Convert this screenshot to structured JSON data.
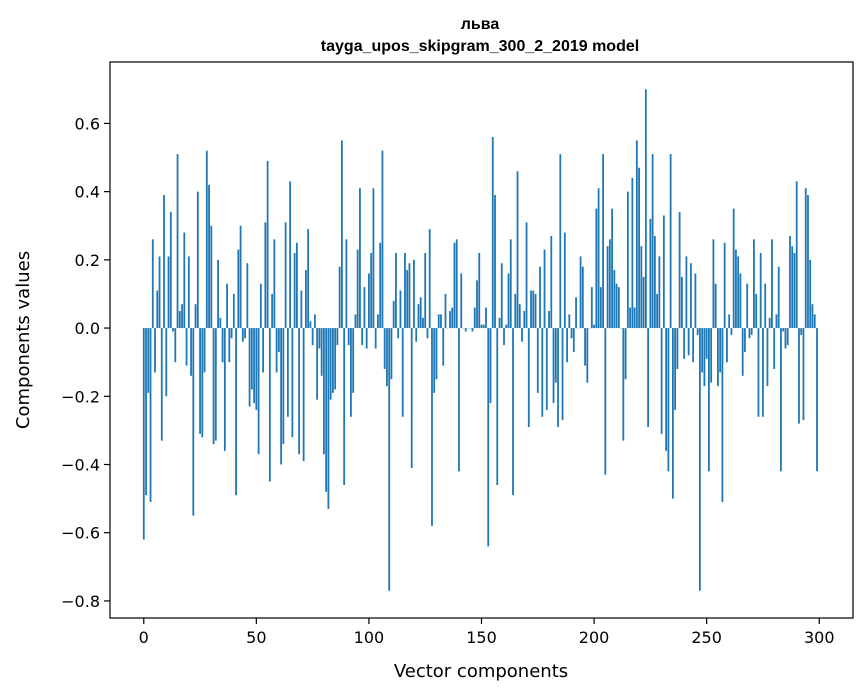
{
  "chart_data": {
    "type": "bar",
    "title": "льва",
    "subtitle": "tayga_upos_skipgram_300_2_2019 model",
    "xlabel": "Vector components",
    "ylabel": "Components values",
    "xlim": [
      -15,
      315
    ],
    "ylim": [
      -0.85,
      0.78
    ],
    "xticks": [
      0,
      50,
      100,
      150,
      200,
      250,
      300
    ],
    "yticks": [
      -0.8,
      -0.6,
      -0.4,
      -0.2,
      0.0,
      0.2,
      0.4,
      0.6
    ],
    "ytick_labels": [
      "−0.8",
      "−0.6",
      "−0.4",
      "−0.2",
      "0.0",
      "0.2",
      "0.4",
      "0.6"
    ],
    "bar_color": "#1f77b4",
    "grid": false,
    "values": [
      -0.62,
      -0.49,
      -0.19,
      -0.51,
      0.26,
      -0.13,
      0.11,
      0.21,
      -0.33,
      0.39,
      -0.2,
      0.21,
      0.34,
      -0.01,
      -0.1,
      0.51,
      0.05,
      0.07,
      0.28,
      -0.11,
      0.21,
      -0.14,
      -0.55,
      0.07,
      0.4,
      -0.31,
      -0.32,
      -0.13,
      0.52,
      0.42,
      0.3,
      -0.34,
      -0.33,
      0.2,
      0.03,
      -0.1,
      -0.36,
      0.13,
      -0.1,
      -0.03,
      0.1,
      -0.49,
      0.23,
      0.3,
      -0.04,
      -0.03,
      0.19,
      -0.23,
      -0.18,
      -0.22,
      -0.24,
      -0.37,
      0.13,
      -0.13,
      0.31,
      0.49,
      -0.45,
      0.1,
      0.26,
      -0.13,
      -0.07,
      -0.4,
      -0.34,
      0.31,
      -0.26,
      0.43,
      -0.32,
      0.22,
      0.25,
      -0.37,
      0.11,
      -0.39,
      0.17,
      0.29,
      0.02,
      -0.05,
      0.04,
      -0.21,
      -0.06,
      -0.14,
      -0.37,
      -0.48,
      -0.53,
      -0.21,
      -0.19,
      -0.18,
      -0.05,
      0.18,
      0.55,
      -0.46,
      0.26,
      -0.05,
      -0.26,
      -0.19,
      0.04,
      0.23,
      0.41,
      -0.05,
      0.12,
      -0.06,
      0.16,
      0.22,
      0.41,
      -0.06,
      0.04,
      0.25,
      0.52,
      -0.12,
      -0.17,
      -0.77,
      -0.15,
      0.08,
      0.22,
      -0.03,
      0.11,
      -0.26,
      0.22,
      0.17,
      0.19,
      -0.41,
      0.2,
      -0.04,
      0.07,
      0.09,
      0.03,
      0.22,
      -0.03,
      0.29,
      -0.58,
      -0.19,
      -0.15,
      0.04,
      0.04,
      -0.11,
      0.1,
      0.0,
      0.05,
      0.06,
      0.25,
      0.26,
      -0.42,
      0.16,
      0.0,
      -0.01,
      0.0,
      0.0,
      -0.01,
      0.06,
      0.14,
      0.22,
      0.01,
      0.01,
      0.06,
      -0.64,
      -0.22,
      0.56,
      0.39,
      -0.46,
      0.03,
      0.19,
      -0.05,
      0.01,
      0.16,
      0.26,
      -0.49,
      0.1,
      0.46,
      0.07,
      -0.04,
      0.05,
      0.31,
      -0.29,
      0.11,
      0.11,
      0.1,
      -0.19,
      0.18,
      -0.26,
      0.23,
      -0.24,
      0.05,
      0.27,
      -0.22,
      -0.16,
      -0.29,
      0.51,
      -0.27,
      0.28,
      -0.1,
      0.04,
      -0.03,
      -0.07,
      0.09,
      0.0,
      0.21,
      0.18,
      -0.11,
      -0.16,
      0.0,
      0.12,
      0.01,
      0.35,
      0.41,
      0.12,
      0.51,
      -0.43,
      0.24,
      0.26,
      0.35,
      0.17,
      0.13,
      0.12,
      0.0,
      -0.33,
      -0.15,
      0.4,
      0.06,
      0.44,
      0.06,
      0.55,
      0.47,
      0.24,
      0.15,
      0.7,
      -0.29,
      0.32,
      0.51,
      0.27,
      0.1,
      0.21,
      -0.31,
      0.33,
      -0.36,
      -0.42,
      0.51,
      -0.5,
      -0.24,
      -0.12,
      0.34,
      0.15,
      -0.09,
      0.21,
      -0.08,
      0.19,
      -0.1,
      0.16,
      -0.02,
      -0.77,
      -0.13,
      -0.17,
      -0.09,
      -0.42,
      -0.16,
      0.26,
      0.13,
      -0.17,
      -0.13,
      -0.51,
      0.25,
      -0.1,
      0.04,
      -0.02,
      0.35,
      0.23,
      0.21,
      0.16,
      -0.14,
      -0.07,
      0.13,
      -0.03,
      -0.02,
      0.26,
      0.1,
      -0.26,
      0.22,
      -0.26,
      0.13,
      -0.17,
      0.03,
      0.26,
      -0.12,
      0.04,
      0.18,
      -0.42,
      -0.01,
      -0.06,
      -0.05,
      0.27,
      0.24,
      0.22,
      0.43,
      -0.28,
      -0.02,
      -0.27,
      0.41,
      0.39,
      0.2,
      0.07,
      0.04,
      -0.42
    ]
  }
}
